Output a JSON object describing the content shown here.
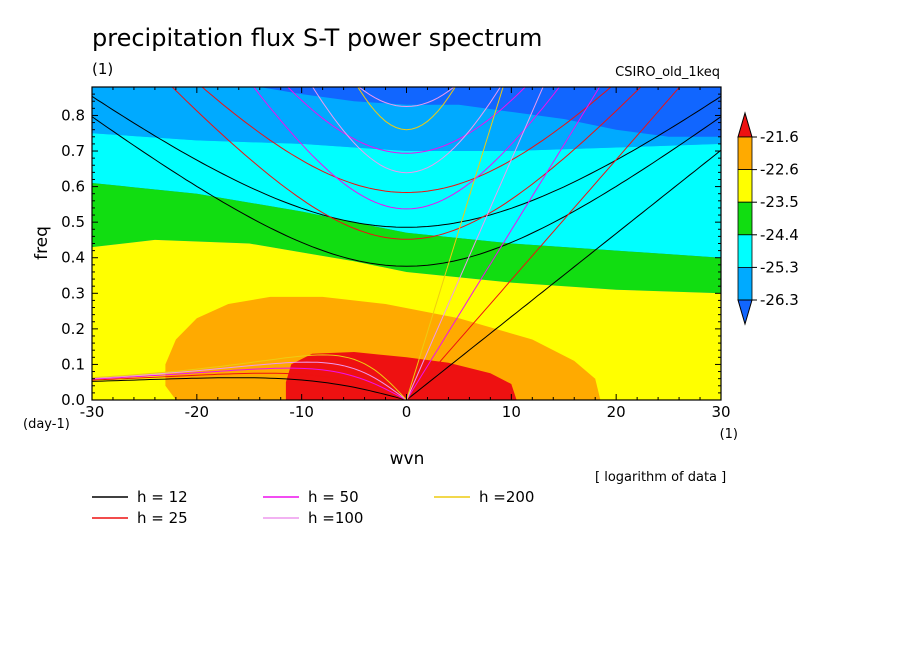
{
  "chart_data": {
    "type": "contour",
    "title": "precipitation flux S-T power spectrum",
    "subtitle_left": "(1)",
    "subtitle_right": "CSIRO_old_1keq",
    "xlabel": "wvn",
    "ylabel": "freq",
    "x_unit": "(1)",
    "y_unit": "(day-1)",
    "xlim": [
      -30,
      30
    ],
    "ylim": [
      0,
      0.88
    ],
    "x_ticks": [
      "-30",
      "-20",
      "-10",
      "0",
      "10",
      "20",
      "30"
    ],
    "x_tick_values": [
      -30,
      -20,
      -10,
      0,
      10,
      20,
      30
    ],
    "y_ticks": [
      "0.0",
      "0.1",
      "0.2",
      "0.3",
      "0.4",
      "0.5",
      "0.6",
      "0.7",
      "0.8"
    ],
    "y_tick_values": [
      0,
      0.1,
      0.2,
      0.3,
      0.4,
      0.5,
      0.6,
      0.7,
      0.8
    ],
    "note": "[ logarithm of data ]",
    "colorbar": {
      "levels": [
        "-21.6",
        "-22.6",
        "-23.5",
        "-24.4",
        "-25.3",
        "-26.3"
      ],
      "colors": [
        "#ee1111",
        "#ffaa00",
        "#ffff00",
        "#11dd11",
        "#00ffff",
        "#00aaff",
        "#1166ff"
      ]
    },
    "bands": [
      {
        "color": "#00aaff",
        "upper": [
          [
            -30,
            0.88
          ],
          [
            30,
            0.88
          ]
        ],
        "lower": [
          [
            -30,
            0.75
          ],
          [
            -20,
            0.73
          ],
          [
            -10,
            0.72
          ],
          [
            0,
            0.7
          ],
          [
            10,
            0.7
          ],
          [
            20,
            0.71
          ],
          [
            30,
            0.72
          ]
        ]
      },
      {
        "color": "#00ffff",
        "upper": [
          [
            -30,
            0.75
          ],
          [
            -20,
            0.73
          ],
          [
            -10,
            0.72
          ],
          [
            0,
            0.7
          ],
          [
            10,
            0.7
          ],
          [
            20,
            0.71
          ],
          [
            30,
            0.72
          ]
        ],
        "lower": [
          [
            -30,
            0.61
          ],
          [
            -20,
            0.58
          ],
          [
            -10,
            0.53
          ],
          [
            0,
            0.47
          ],
          [
            10,
            0.44
          ],
          [
            20,
            0.42
          ],
          [
            30,
            0.4
          ]
        ]
      },
      {
        "color": "#11dd11",
        "upper": [
          [
            -30,
            0.61
          ],
          [
            -20,
            0.58
          ],
          [
            -10,
            0.53
          ],
          [
            0,
            0.47
          ],
          [
            10,
            0.44
          ],
          [
            20,
            0.42
          ],
          [
            30,
            0.4
          ]
        ],
        "lower": [
          [
            -30,
            0.43
          ],
          [
            -24,
            0.45
          ],
          [
            -15,
            0.44
          ],
          [
            -5,
            0.39
          ],
          [
            0,
            0.36
          ],
          [
            10,
            0.33
          ],
          [
            20,
            0.31
          ],
          [
            30,
            0.3
          ]
        ]
      },
      {
        "color": "#ffff00",
        "upper": [
          [
            -30,
            0.43
          ],
          [
            -24,
            0.45
          ],
          [
            -15,
            0.44
          ],
          [
            -5,
            0.39
          ],
          [
            0,
            0.36
          ],
          [
            10,
            0.33
          ],
          [
            20,
            0.31
          ],
          [
            30,
            0.3
          ]
        ],
        "lower": [
          [
            -30,
            0
          ],
          [
            30,
            0
          ]
        ]
      }
    ],
    "blobs": [
      {
        "color": "#1166ff",
        "points": [
          [
            -14,
            0.88
          ],
          [
            -10,
            0.86
          ],
          [
            -5,
            0.84
          ],
          [
            0,
            0.83
          ],
          [
            5,
            0.83
          ],
          [
            10,
            0.81
          ],
          [
            15,
            0.79
          ],
          [
            20,
            0.76
          ],
          [
            25,
            0.74
          ],
          [
            30,
            0.74
          ],
          [
            30,
            0.88
          ]
        ]
      },
      {
        "color": "#ffaa00",
        "points": [
          [
            -22,
            0
          ],
          [
            -23,
            0.04
          ],
          [
            -23,
            0.1
          ],
          [
            -22,
            0.17
          ],
          [
            -20,
            0.23
          ],
          [
            -17,
            0.27
          ],
          [
            -13,
            0.29
          ],
          [
            -8,
            0.29
          ],
          [
            -2,
            0.27
          ],
          [
            5,
            0.23
          ],
          [
            12,
            0.17
          ],
          [
            16,
            0.11
          ],
          [
            18,
            0.06
          ],
          [
            18.5,
            0
          ]
        ]
      },
      {
        "color": "#ee1111",
        "points": [
          [
            -11.5,
            0
          ],
          [
            -11.5,
            0.05
          ],
          [
            -11,
            0.1
          ],
          [
            -9,
            0.13
          ],
          [
            -5,
            0.135
          ],
          [
            0,
            0.12
          ],
          [
            4,
            0.105
          ],
          [
            8,
            0.075
          ],
          [
            10,
            0.045
          ],
          [
            10.5,
            0
          ]
        ]
      }
    ],
    "series": [
      {
        "name": "h = 12",
        "color": "#000000",
        "h": 12
      },
      {
        "name": "h = 25",
        "color": "#ee1111",
        "h": 25
      },
      {
        "name": "h = 50",
        "color": "#ee11ee",
        "h": 50
      },
      {
        "name": "h =100",
        "color": "#ee99ee",
        "h": 100
      },
      {
        "name": "h =200",
        "color": "#eecc11",
        "h": 200
      }
    ]
  }
}
